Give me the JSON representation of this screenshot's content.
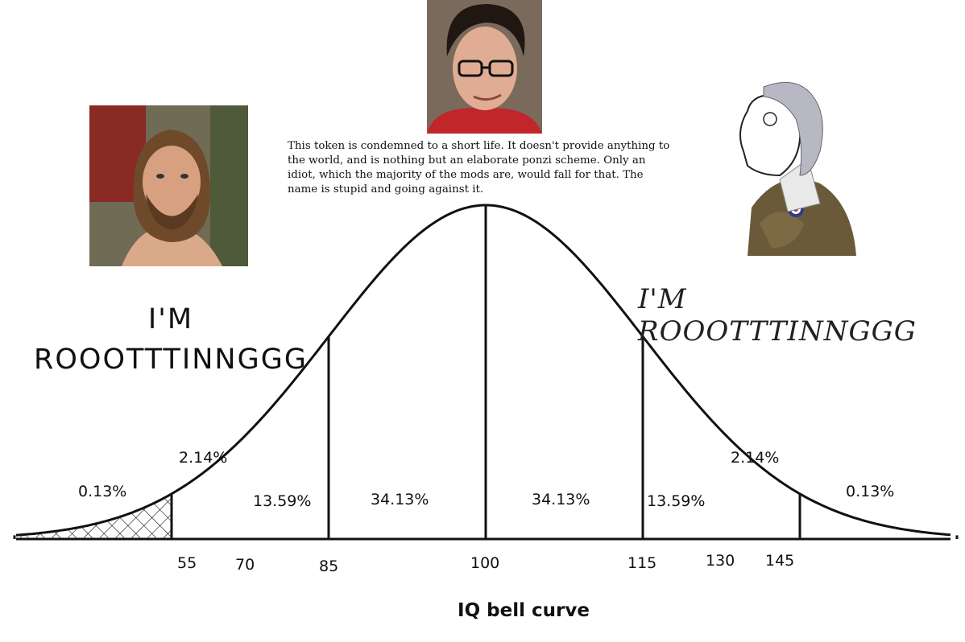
{
  "caption": "This token is condemned to a short life. It doesn't provide anything to the world, and is nothing but an elaborate ponzi scheme. Only an idiot, which the majority of the mods are, would fall for that. The name is stupid and going against it.",
  "left_text": {
    "line1": "I'M",
    "line2": "ROOOTTTINNGGG"
  },
  "right_text": "I'M ROOOTTTINNGGG",
  "title": "IQ bell curve",
  "chart_data": {
    "type": "area",
    "title": "IQ bell curve",
    "x_ticks": [
      "55",
      "70",
      "85",
      "100",
      "115",
      "130",
      "145"
    ],
    "x_values": [
      55,
      70,
      85,
      100,
      115,
      130,
      145
    ],
    "mean": 100,
    "sd": 15,
    "region_labels": [
      "0.13%",
      "2.14%",
      "13.59%",
      "34.13%",
      "34.13%",
      "13.59%",
      "2.14%",
      "0.13%"
    ],
    "region_values": [
      0.13,
      2.14,
      13.59,
      34.13,
      34.13,
      13.59,
      2.14,
      0.13
    ],
    "xlim": [
      40,
      160
    ],
    "grid": false
  }
}
